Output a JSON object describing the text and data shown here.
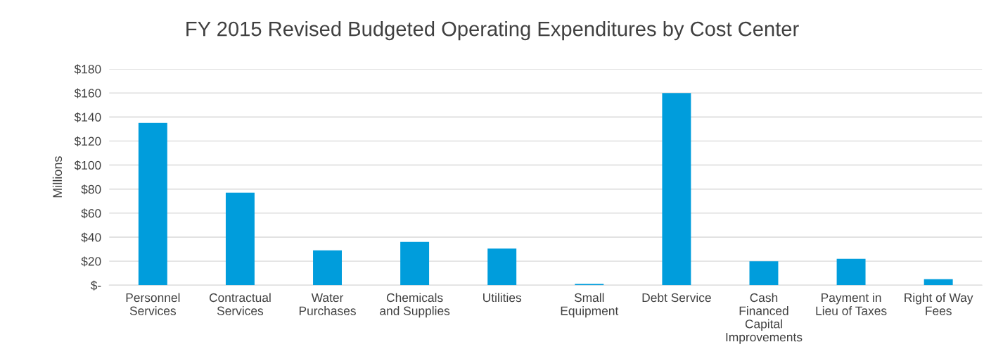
{
  "chart_data": {
    "type": "bar",
    "title": "FY 2015 Revised Budgeted Operating Expenditures by Cost Center",
    "ylabel": "Millions",
    "categories": [
      "Personnel\nServices",
      "Contractual\nServices",
      "Water\nPurchases",
      "Chemicals\nand Supplies",
      "Utilities",
      "Small\nEquipment",
      "Debt Service",
      "Cash\nFinanced\nCapital\nImprovements",
      "Payment in\nLieu of Taxes",
      "Right of Way\nFees"
    ],
    "values": [
      135,
      77,
      29,
      36,
      30.5,
      1,
      160,
      20,
      22,
      5
    ],
    "color": "#009ddc",
    "ylim": [
      0,
      180
    ],
    "yticks": [
      {
        "value": 0,
        "label": "$-"
      },
      {
        "value": 20,
        "label": "$20"
      },
      {
        "value": 40,
        "label": "$40"
      },
      {
        "value": 60,
        "label": "$60"
      },
      {
        "value": 80,
        "label": "$80"
      },
      {
        "value": 100,
        "label": "$100"
      },
      {
        "value": 120,
        "label": "$120"
      },
      {
        "value": 140,
        "label": "$140"
      },
      {
        "value": 160,
        "label": "$160"
      },
      {
        "value": 180,
        "label": "$180"
      }
    ],
    "grid": "y"
  }
}
